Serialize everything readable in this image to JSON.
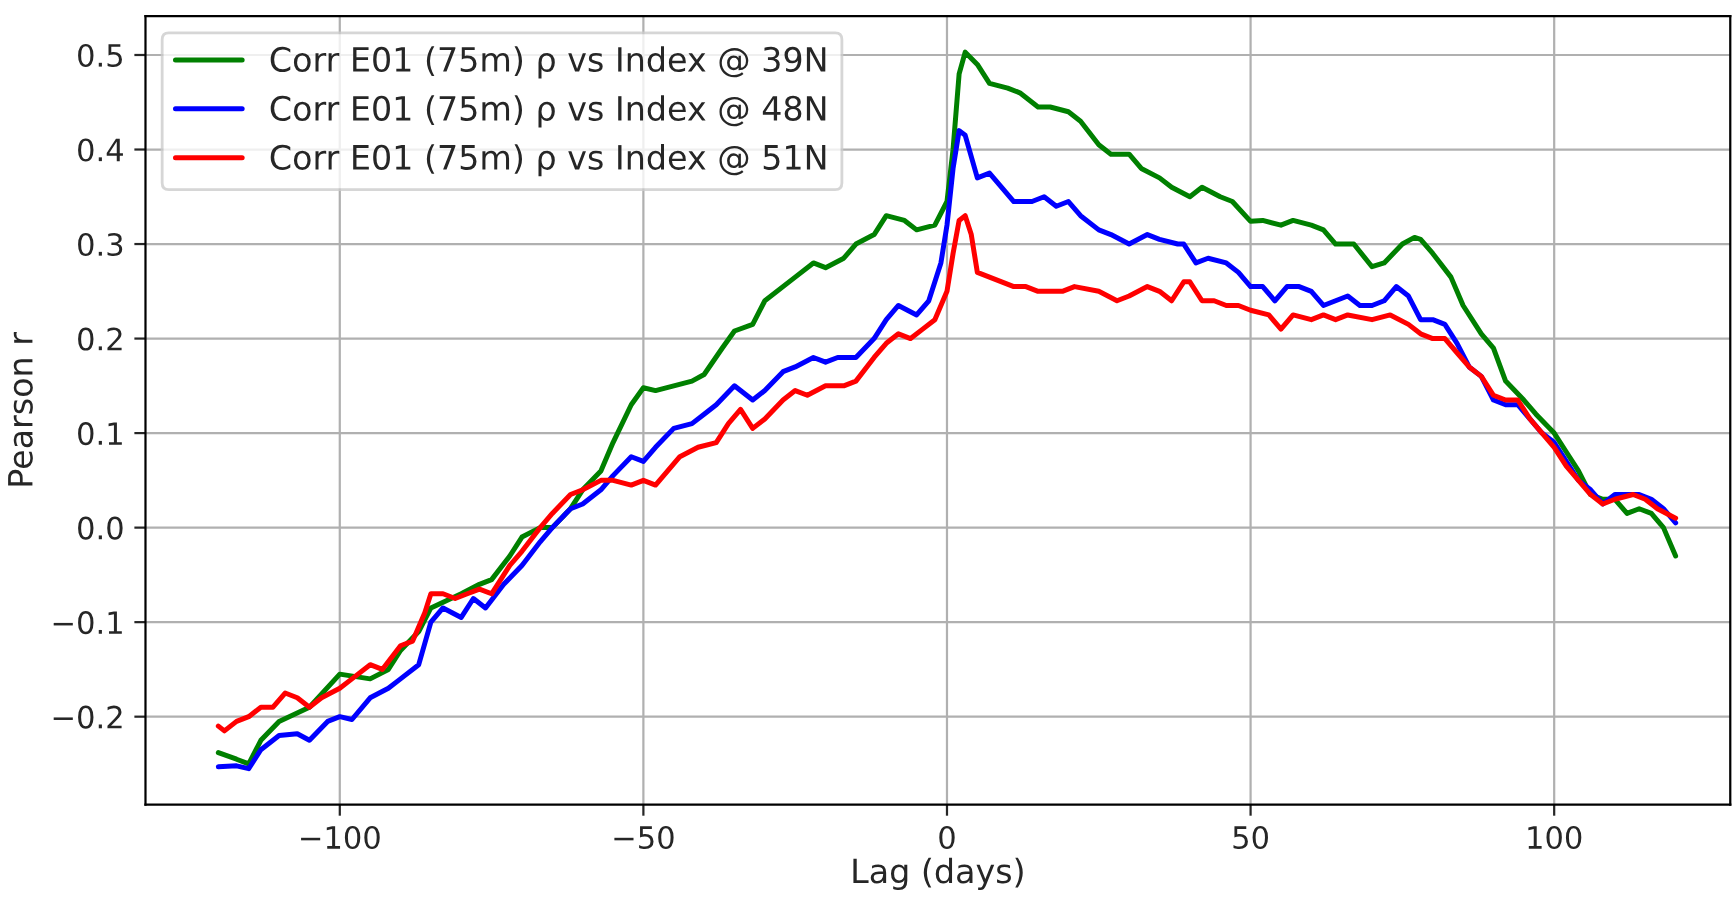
{
  "chart_data": {
    "type": "line",
    "xlabel": "Lag (days)",
    "ylabel": "Pearson r",
    "xlim": [
      -132,
      129
    ],
    "ylim": [
      -0.293,
      0.541
    ],
    "xticks": [
      {
        "value": -100,
        "label": "−100"
      },
      {
        "value": -50,
        "label": "−50"
      },
      0,
      50,
      100
    ],
    "yticks": [
      {
        "value": -0.2,
        "label": "−0.2"
      },
      {
        "value": -0.1,
        "label": "−0.1"
      },
      {
        "value": 0.0,
        "label": "0.0"
      },
      0.1,
      0.2,
      0.3,
      0.4,
      0.5
    ],
    "grid": true,
    "legend": "top left",
    "line_style": "solid",
    "marker": "none",
    "series": [
      {
        "name": "Corr E01 (75m) ρ vs Index @ 39N",
        "color": "#008000",
        "x": [
          -120,
          -117,
          -115,
          -113,
          -110,
          -105,
          -100,
          -95,
          -92,
          -90,
          -87,
          -85,
          -80,
          -77,
          -75,
          -72,
          -70,
          -67,
          -65,
          -62,
          -60,
          -57,
          -55,
          -52,
          -50,
          -48,
          -45,
          -42,
          -40,
          -37,
          -35,
          -32,
          -30,
          -25,
          -22,
          -20,
          -17,
          -15,
          -12,
          -10,
          -7,
          -5,
          -2,
          0,
          1,
          2,
          3,
          5,
          7,
          10,
          12,
          15,
          17,
          20,
          22,
          25,
          27,
          30,
          32,
          35,
          37,
          40,
          42,
          45,
          47,
          50,
          52,
          55,
          57,
          60,
          62,
          64,
          65,
          67,
          70,
          72,
          75,
          77,
          78,
          80,
          83,
          85,
          88,
          90,
          92,
          95,
          97,
          100,
          102,
          104,
          106,
          108,
          110,
          112,
          114,
          116,
          118,
          120
        ],
        "values": [
          -0.238,
          -0.245,
          -0.25,
          -0.225,
          -0.205,
          -0.19,
          -0.155,
          -0.16,
          -0.15,
          -0.13,
          -0.11,
          -0.085,
          -0.07,
          -0.06,
          -0.055,
          -0.03,
          -0.01,
          0.0,
          0.0,
          0.02,
          0.04,
          0.06,
          0.09,
          0.13,
          0.148,
          0.145,
          0.15,
          0.155,
          0.162,
          0.19,
          0.208,
          0.215,
          0.24,
          0.265,
          0.28,
          0.275,
          0.285,
          0.3,
          0.31,
          0.33,
          0.325,
          0.315,
          0.32,
          0.345,
          0.4,
          0.48,
          0.503,
          0.49,
          0.47,
          0.465,
          0.46,
          0.445,
          0.445,
          0.44,
          0.43,
          0.405,
          0.395,
          0.395,
          0.38,
          0.37,
          0.36,
          0.35,
          0.36,
          0.35,
          0.345,
          0.324,
          0.325,
          0.32,
          0.325,
          0.32,
          0.315,
          0.3,
          0.3,
          0.3,
          0.276,
          0.28,
          0.3,
          0.307,
          0.305,
          0.29,
          0.265,
          0.235,
          0.205,
          0.19,
          0.155,
          0.135,
          0.12,
          0.1,
          0.08,
          0.06,
          0.035,
          0.03,
          0.03,
          0.015,
          0.02,
          0.015,
          0.0,
          -0.03
        ]
      },
      {
        "name": "Corr E01 (75m) ρ vs Index @ 48N",
        "color": "#0000ff",
        "x": [
          -120,
          -117,
          -115,
          -113,
          -110,
          -107,
          -105,
          -102,
          -100,
          -98,
          -95,
          -92,
          -90,
          -87,
          -85,
          -83,
          -80,
          -78,
          -76,
          -73,
          -70,
          -67,
          -65,
          -62,
          -60,
          -57,
          -55,
          -52,
          -50,
          -48,
          -45,
          -42,
          -40,
          -38,
          -35,
          -32,
          -30,
          -27,
          -25,
          -22,
          -20,
          -18,
          -15,
          -12,
          -10,
          -8,
          -5,
          -3,
          -1,
          0,
          1,
          2,
          3,
          5,
          7,
          9,
          11,
          14,
          16,
          18,
          20,
          22,
          25,
          27,
          30,
          33,
          35,
          38,
          39,
          41,
          43,
          46,
          48,
          50,
          52,
          54,
          56,
          58,
          60,
          62,
          64,
          66,
          68,
          70,
          72,
          74,
          76,
          78,
          80,
          82,
          84,
          86,
          88,
          90,
          92,
          94,
          96,
          98,
          100,
          102,
          104,
          106,
          108,
          110,
          112,
          114,
          116,
          118,
          120
        ],
        "values": [
          -0.253,
          -0.252,
          -0.255,
          -0.235,
          -0.22,
          -0.218,
          -0.225,
          -0.205,
          -0.2,
          -0.203,
          -0.18,
          -0.17,
          -0.16,
          -0.145,
          -0.1,
          -0.085,
          -0.095,
          -0.075,
          -0.085,
          -0.06,
          -0.04,
          -0.015,
          0.0,
          0.02,
          0.025,
          0.04,
          0.055,
          0.075,
          0.07,
          0.085,
          0.105,
          0.11,
          0.12,
          0.13,
          0.15,
          0.135,
          0.145,
          0.165,
          0.17,
          0.18,
          0.175,
          0.18,
          0.18,
          0.2,
          0.22,
          0.235,
          0.225,
          0.24,
          0.28,
          0.32,
          0.38,
          0.42,
          0.415,
          0.37,
          0.375,
          0.36,
          0.345,
          0.345,
          0.35,
          0.34,
          0.345,
          0.33,
          0.315,
          0.31,
          0.3,
          0.31,
          0.305,
          0.3,
          0.3,
          0.28,
          0.285,
          0.28,
          0.27,
          0.255,
          0.255,
          0.24,
          0.255,
          0.255,
          0.25,
          0.235,
          0.24,
          0.245,
          0.235,
          0.235,
          0.24,
          0.255,
          0.245,
          0.22,
          0.22,
          0.215,
          0.195,
          0.17,
          0.16,
          0.135,
          0.13,
          0.13,
          0.115,
          0.1,
          0.09,
          0.07,
          0.05,
          0.04,
          0.025,
          0.035,
          0.035,
          0.035,
          0.03,
          0.02,
          0.005
        ]
      },
      {
        "name": "Corr E01 (75m) ρ vs Index @ 51N",
        "color": "#ff0000",
        "x": [
          -120,
          -119,
          -117,
          -115,
          -113,
          -111,
          -109,
          -107,
          -105,
          -103,
          -100,
          -98,
          -95,
          -93,
          -90,
          -88,
          -86,
          -85,
          -83,
          -81,
          -79,
          -77,
          -75,
          -72,
          -70,
          -67,
          -65,
          -62,
          -60,
          -57,
          -55,
          -52,
          -50,
          -48,
          -46,
          -44,
          -41,
          -38,
          -36,
          -34,
          -32,
          -30,
          -27,
          -25,
          -23,
          -20,
          -17,
          -15,
          -12,
          -10,
          -8,
          -6,
          -4,
          -2,
          0,
          1,
          2,
          3,
          4,
          5,
          7,
          9,
          11,
          13,
          15,
          17,
          19,
          21,
          25,
          28,
          30,
          33,
          35,
          37,
          39,
          40,
          42,
          44,
          46,
          48,
          50,
          53,
          55,
          57,
          60,
          62,
          64,
          66,
          70,
          73,
          76,
          78,
          80,
          82,
          84,
          86,
          88,
          90,
          92,
          94,
          96,
          98,
          100,
          102,
          104,
          106,
          108,
          110,
          113,
          115,
          117,
          120
        ],
        "values": [
          -0.21,
          -0.215,
          -0.205,
          -0.2,
          -0.19,
          -0.19,
          -0.175,
          -0.18,
          -0.19,
          -0.18,
          -0.17,
          -0.16,
          -0.145,
          -0.15,
          -0.125,
          -0.12,
          -0.09,
          -0.07,
          -0.07,
          -0.075,
          -0.07,
          -0.065,
          -0.07,
          -0.04,
          -0.025,
          0.0,
          0.015,
          0.035,
          0.04,
          0.05,
          0.05,
          0.045,
          0.05,
          0.045,
          0.06,
          0.075,
          0.085,
          0.09,
          0.11,
          0.125,
          0.105,
          0.115,
          0.135,
          0.145,
          0.14,
          0.15,
          0.15,
          0.155,
          0.18,
          0.195,
          0.205,
          0.2,
          0.21,
          0.22,
          0.25,
          0.29,
          0.325,
          0.33,
          0.31,
          0.27,
          0.265,
          0.26,
          0.255,
          0.255,
          0.25,
          0.25,
          0.25,
          0.255,
          0.25,
          0.24,
          0.245,
          0.255,
          0.25,
          0.24,
          0.26,
          0.26,
          0.24,
          0.24,
          0.235,
          0.235,
          0.23,
          0.225,
          0.21,
          0.225,
          0.22,
          0.225,
          0.22,
          0.225,
          0.22,
          0.225,
          0.215,
          0.205,
          0.2,
          0.2,
          0.185,
          0.17,
          0.16,
          0.14,
          0.135,
          0.135,
          0.115,
          0.1,
          0.085,
          0.065,
          0.05,
          0.035,
          0.025,
          0.03,
          0.035,
          0.03,
          0.02,
          0.01
        ]
      }
    ]
  }
}
